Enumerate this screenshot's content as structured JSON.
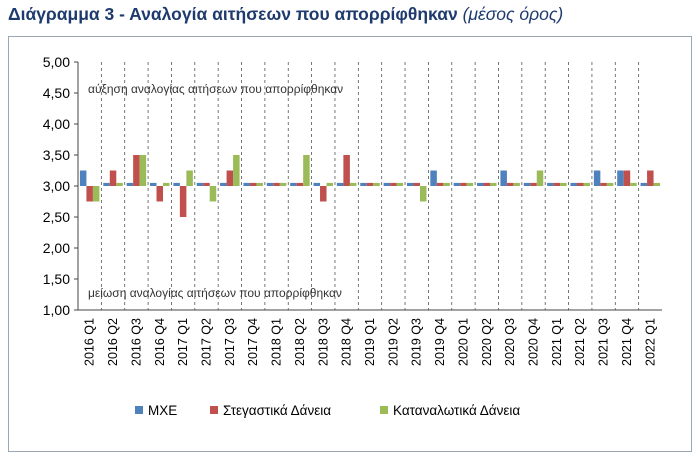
{
  "title": {
    "main": "Διάγραμμα 3 - Αναλογία αιτήσεων που απορρίφθηκαν",
    "sub": "(μέσος όρος)"
  },
  "chart_data": {
    "type": "bar",
    "categories": [
      "2016 Q1",
      "2016 Q2",
      "2016 Q3",
      "2016 Q4",
      "2017 Q1",
      "2017 Q2",
      "2017 Q3",
      "2017 Q4",
      "2018 Q1",
      "2018 Q2",
      "2018 Q3",
      "2018 Q4",
      "2019 Q1",
      "2019 Q2",
      "2019 Q3",
      "2019 Q4",
      "2020 Q1",
      "2020 Q2",
      "2020 Q3",
      "2020 Q4",
      "2021 Q1",
      "2021 Q2",
      "2021 Q3",
      "2021 Q4",
      "2022 Q1"
    ],
    "baseline": 3.0,
    "ylim": [
      1.0,
      5.0
    ],
    "yticks": [
      "1,00",
      "1,50",
      "2,00",
      "2,50",
      "3,00",
      "3,50",
      "4,00",
      "4,50",
      "5,00"
    ],
    "series": [
      {
        "name": "ΜΧΕ",
        "color": "#4f81bd",
        "values": [
          3.25,
          3.05,
          3.05,
          3.05,
          3.05,
          3.05,
          3.05,
          3.05,
          3.05,
          3.05,
          3.05,
          3.05,
          3.05,
          3.05,
          3.05,
          3.25,
          3.05,
          3.05,
          3.25,
          3.05,
          3.05,
          3.05,
          3.25,
          3.25,
          3.05
        ]
      },
      {
        "name": "Στεγαστικά Δάνεια",
        "color": "#c0504d",
        "values": [
          2.75,
          3.25,
          3.5,
          2.75,
          2.5,
          3.05,
          3.25,
          3.05,
          3.05,
          3.05,
          2.75,
          3.5,
          3.05,
          3.05,
          3.05,
          3.05,
          3.05,
          3.05,
          3.05,
          3.05,
          3.05,
          3.05,
          3.05,
          3.25,
          3.25
        ]
      },
      {
        "name": "Καταναλωτικά Δάνεια",
        "color": "#9bbb59",
        "values": [
          2.75,
          3.05,
          3.5,
          3.05,
          3.25,
          2.75,
          3.5,
          3.05,
          3.05,
          3.5,
          3.05,
          3.05,
          3.05,
          3.05,
          2.75,
          3.05,
          3.05,
          3.05,
          3.05,
          3.25,
          3.05,
          3.05,
          3.05,
          3.05,
          3.05
        ]
      }
    ],
    "annotations": {
      "top": "αύξηση αναλογίας αιτήσεων που απορρίφθηκαν",
      "bottom": "μείωση αναλογίας αιτήσεων που απορρίφθηκαν"
    },
    "legend_position": "bottom",
    "grid": "vertical dashed"
  }
}
